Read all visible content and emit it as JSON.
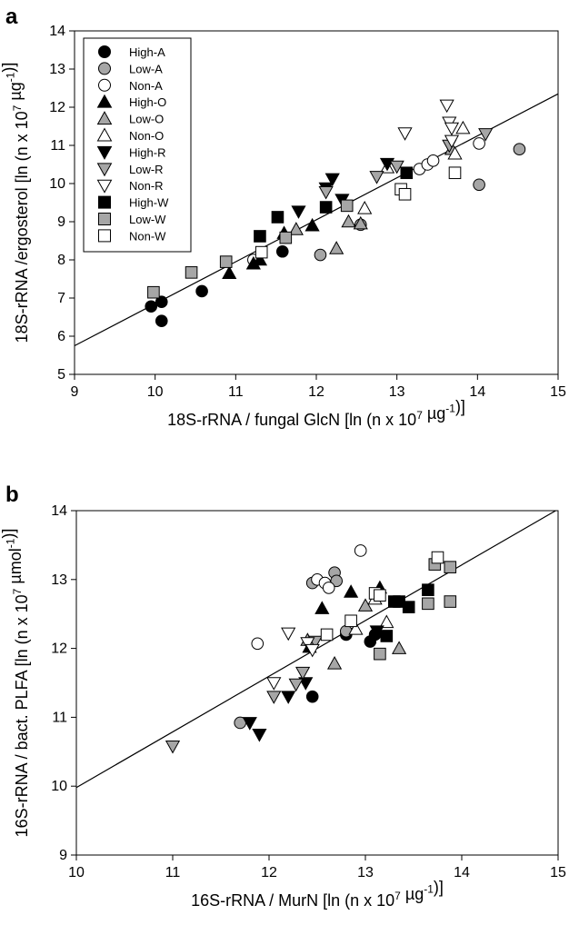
{
  "colors": {
    "black": "#000000",
    "gray": "#a6a6a6",
    "white": "#ffffff",
    "line": "#000000"
  },
  "legend": [
    {
      "label": "High-A",
      "shape": "circle",
      "fill": "black"
    },
    {
      "label": "Low-A",
      "shape": "circle",
      "fill": "gray"
    },
    {
      "label": "Non-A",
      "shape": "circle",
      "fill": "white"
    },
    {
      "label": "High-O",
      "shape": "triangle-up",
      "fill": "black"
    },
    {
      "label": "Low-O",
      "shape": "triangle-up",
      "fill": "gray"
    },
    {
      "label": "Non-O",
      "shape": "triangle-up",
      "fill": "white"
    },
    {
      "label": "High-R",
      "shape": "triangle-down",
      "fill": "black"
    },
    {
      "label": "Low-R",
      "shape": "triangle-down",
      "fill": "gray"
    },
    {
      "label": "Non-R",
      "shape": "triangle-down",
      "fill": "white"
    },
    {
      "label": "High-W",
      "shape": "square",
      "fill": "black"
    },
    {
      "label": "Low-W",
      "shape": "square",
      "fill": "gray"
    },
    {
      "label": "Non-W",
      "shape": "square",
      "fill": "white"
    }
  ],
  "chart_data": [
    {
      "type": "scatter",
      "panel_label": "a",
      "xlabel": "18S-rRNA / fungal GlcN [ln (n x 10⁷ µg⁻¹)]",
      "ylabel": "18S-rRNA /ergosterol [ln (n x 10⁷ µg⁻¹)]",
      "xlim": [
        9,
        15
      ],
      "ylim": [
        5,
        14
      ],
      "xticks": [
        9,
        10,
        11,
        12,
        13,
        14,
        15
      ],
      "yticks": [
        5,
        6,
        7,
        8,
        9,
        10,
        11,
        12,
        13,
        14
      ],
      "legend_position": "top-left",
      "grid": false,
      "fit_line": {
        "x": [
          9,
          15
        ],
        "y": [
          5.75,
          12.35
        ]
      },
      "series": [
        {
          "name": "High-A",
          "points": [
            [
              9.95,
              6.78
            ],
            [
              10.08,
              6.9
            ],
            [
              10.08,
              6.4
            ],
            [
              10.58,
              7.18
            ],
            [
              11.58,
              8.22
            ]
          ]
        },
        {
          "name": "Low-A",
          "points": [
            [
              12.05,
              8.13
            ],
            [
              12.55,
              8.92
            ],
            [
              14.02,
              9.97
            ],
            [
              14.52,
              10.9
            ]
          ]
        },
        {
          "name": "Non-A",
          "points": [
            [
              11.22,
              8.0
            ],
            [
              13.28,
              10.38
            ],
            [
              13.38,
              10.5
            ],
            [
              13.45,
              10.6
            ],
            [
              14.02,
              11.05
            ]
          ]
        },
        {
          "name": "High-O",
          "points": [
            [
              10.92,
              7.65
            ],
            [
              11.22,
              7.9
            ],
            [
              11.3,
              8.0
            ],
            [
              11.6,
              8.7
            ],
            [
              11.95,
              8.9
            ]
          ]
        },
        {
          "name": "Low-O",
          "points": [
            [
              11.75,
              8.8
            ],
            [
              12.25,
              8.3
            ],
            [
              12.4,
              9.0
            ],
            [
              12.55,
              8.95
            ],
            [
              13.68,
              10.9
            ]
          ]
        },
        {
          "name": "Non-O",
          "points": [
            [
              12.6,
              9.35
            ],
            [
              12.88,
              10.42
            ],
            [
              13.72,
              10.78
            ],
            [
              13.82,
              11.45
            ]
          ]
        },
        {
          "name": "High-R",
          "points": [
            [
              11.78,
              9.27
            ],
            [
              12.12,
              9.88
            ],
            [
              12.2,
              10.12
            ],
            [
              12.32,
              9.58
            ],
            [
              12.88,
              10.52
            ]
          ]
        },
        {
          "name": "Low-R",
          "points": [
            [
              12.12,
              9.78
            ],
            [
              12.75,
              10.18
            ],
            [
              13.0,
              10.45
            ],
            [
              13.65,
              11.0
            ],
            [
              14.1,
              11.3
            ]
          ]
        },
        {
          "name": "Non-R",
          "points": [
            [
              13.1,
              11.32
            ],
            [
              13.62,
              12.05
            ],
            [
              13.65,
              11.6
            ],
            [
              13.68,
              11.45
            ],
            [
              13.68,
              11.12
            ]
          ]
        },
        {
          "name": "High-W",
          "points": [
            [
              11.3,
              8.62
            ],
            [
              11.52,
              9.12
            ],
            [
              12.12,
              9.38
            ],
            [
              13.12,
              10.28
            ]
          ]
        },
        {
          "name": "Low-W",
          "points": [
            [
              9.98,
              7.15
            ],
            [
              10.45,
              7.67
            ],
            [
              10.88,
              7.95
            ],
            [
              11.62,
              8.58
            ],
            [
              12.38,
              9.42
            ]
          ]
        },
        {
          "name": "Non-W",
          "points": [
            [
              11.32,
              8.2
            ],
            [
              13.05,
              9.85
            ],
            [
              13.1,
              9.72
            ],
            [
              13.72,
              10.28
            ]
          ]
        }
      ]
    },
    {
      "type": "scatter",
      "panel_label": "b",
      "xlabel": "16S-rRNA / MurN [ln (n x 10⁷ µg⁻¹)]",
      "ylabel": "16S-rRNA / bact. PLFA [ln (n x 10⁷ µmol⁻¹)]",
      "xlim": [
        10,
        15
      ],
      "ylim": [
        9,
        14
      ],
      "xticks": [
        10,
        11,
        12,
        13,
        14,
        15
      ],
      "yticks": [
        9,
        10,
        11,
        12,
        13,
        14
      ],
      "grid": false,
      "fit_line": {
        "x": [
          10,
          15
        ],
        "y": [
          9.98,
          14.02
        ]
      },
      "series": [
        {
          "name": "High-A",
          "points": [
            [
              12.45,
              11.3
            ],
            [
              12.8,
              12.2
            ],
            [
              13.05,
              12.1
            ],
            [
              13.1,
              12.2
            ]
          ]
        },
        {
          "name": "Low-A",
          "points": [
            [
              11.7,
              10.92
            ],
            [
              12.45,
              12.95
            ],
            [
              12.68,
              13.1
            ],
            [
              12.7,
              12.98
            ],
            [
              12.8,
              12.25
            ]
          ]
        },
        {
          "name": "Non-A",
          "points": [
            [
              11.88,
              12.07
            ],
            [
              12.5,
              13.0
            ],
            [
              12.58,
              12.95
            ],
            [
              12.62,
              12.88
            ],
            [
              12.95,
              13.42
            ]
          ]
        },
        {
          "name": "High-O",
          "points": [
            [
              12.42,
              12.02
            ],
            [
              12.55,
              12.58
            ],
            [
              12.85,
              12.82
            ],
            [
              13.15,
              12.88
            ]
          ]
        },
        {
          "name": "Low-O",
          "points": [
            [
              12.4,
              12.12
            ],
            [
              12.68,
              11.78
            ],
            [
              13.0,
              12.62
            ],
            [
              13.35,
              12.0
            ]
          ]
        },
        {
          "name": "Non-O",
          "points": [
            [
              12.9,
              12.28
            ],
            [
              13.1,
              12.72
            ],
            [
              13.22,
              12.38
            ]
          ]
        },
        {
          "name": "High-R",
          "points": [
            [
              11.8,
              10.92
            ],
            [
              11.9,
              10.75
            ],
            [
              12.2,
              11.3
            ],
            [
              12.38,
              11.5
            ],
            [
              13.12,
              12.25
            ]
          ]
        },
        {
          "name": "Low-R",
          "points": [
            [
              11.0,
              10.58
            ],
            [
              12.05,
              11.3
            ],
            [
              12.28,
              11.48
            ],
            [
              12.35,
              11.65
            ],
            [
              12.48,
              12.1
            ]
          ]
        },
        {
          "name": "Non-R",
          "points": [
            [
              12.05,
              11.5
            ],
            [
              12.2,
              12.22
            ],
            [
              12.4,
              12.08
            ],
            [
              12.45,
              11.98
            ]
          ]
        },
        {
          "name": "High-W",
          "points": [
            [
              13.22,
              12.18
            ],
            [
              13.3,
              12.68
            ],
            [
              13.35,
              12.68
            ],
            [
              13.45,
              12.6
            ],
            [
              13.65,
              12.85
            ]
          ]
        },
        {
          "name": "Low-W",
          "points": [
            [
              13.15,
              11.92
            ],
            [
              13.65,
              12.65
            ],
            [
              13.72,
              13.22
            ],
            [
              13.88,
              12.68
            ],
            [
              13.88,
              13.18
            ]
          ]
        },
        {
          "name": "Non-W",
          "points": [
            [
              12.6,
              12.2
            ],
            [
              12.85,
              12.4
            ],
            [
              13.1,
              12.8
            ],
            [
              13.15,
              12.77
            ],
            [
              13.75,
              13.32
            ]
          ]
        }
      ]
    }
  ]
}
